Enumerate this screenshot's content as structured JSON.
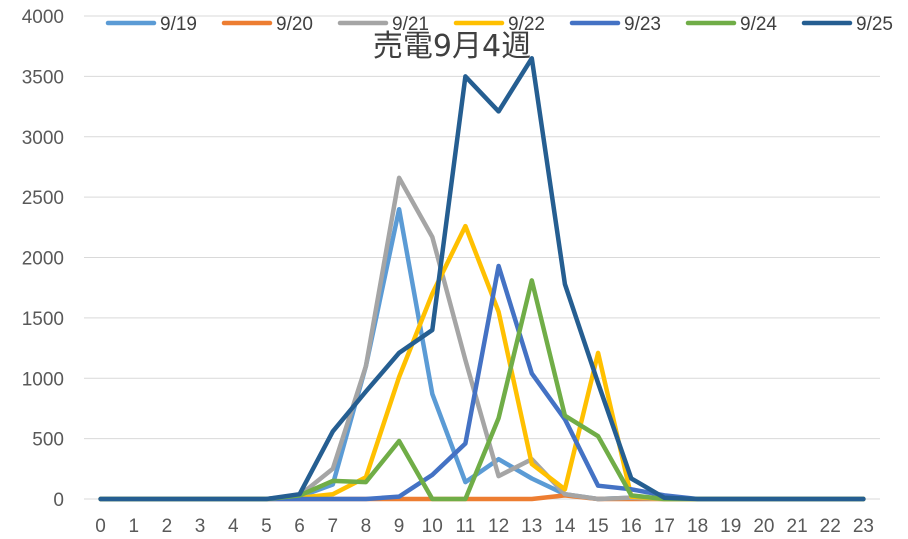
{
  "chart_data": {
    "type": "line",
    "title": "売電9月4週",
    "xlabel": "",
    "ylabel": "",
    "ylim": [
      0,
      4000
    ],
    "yticks": [
      0,
      500,
      1000,
      1500,
      2000,
      2500,
      3000,
      3500,
      4000
    ],
    "grid": true,
    "legend_position": "top",
    "x": [
      "0",
      "1",
      "2",
      "3",
      "4",
      "5",
      "6",
      "7",
      "8",
      "9",
      "10",
      "11",
      "12",
      "13",
      "14",
      "15",
      "16",
      "17",
      "18",
      "19",
      "20",
      "21",
      "22",
      "23"
    ],
    "series": [
      {
        "name": "9/19",
        "color": "#5b9bd5",
        "values": [
          0,
          0,
          0,
          0,
          0,
          0,
          20,
          120,
          1100,
          2400,
          870,
          140,
          330,
          170,
          40,
          0,
          10,
          0,
          0,
          0,
          0,
          0,
          0,
          0
        ]
      },
      {
        "name": "9/20",
        "color": "#ed7d31",
        "values": [
          0,
          0,
          0,
          0,
          0,
          0,
          0,
          0,
          0,
          0,
          0,
          0,
          0,
          0,
          30,
          0,
          0,
          0,
          0,
          0,
          0,
          0,
          0,
          0
        ]
      },
      {
        "name": "9/21",
        "color": "#a5a5a5",
        "values": [
          0,
          0,
          0,
          0,
          0,
          0,
          30,
          250,
          1100,
          2660,
          2170,
          1150,
          190,
          330,
          40,
          0,
          10,
          0,
          0,
          0,
          0,
          0,
          0,
          0
        ]
      },
      {
        "name": "9/22",
        "color": "#ffc000",
        "values": [
          0,
          0,
          0,
          0,
          0,
          0,
          10,
          40,
          180,
          1010,
          1700,
          2260,
          1550,
          290,
          80,
          1210,
          20,
          0,
          0,
          0,
          0,
          0,
          0,
          0
        ]
      },
      {
        "name": "9/23",
        "color": "#4472c4",
        "values": [
          0,
          0,
          0,
          0,
          0,
          0,
          0,
          0,
          0,
          20,
          200,
          460,
          1930,
          1040,
          660,
          110,
          80,
          30,
          0,
          0,
          0,
          0,
          0,
          0
        ]
      },
      {
        "name": "9/24",
        "color": "#70ad47",
        "values": [
          0,
          0,
          0,
          0,
          0,
          0,
          30,
          150,
          140,
          480,
          0,
          0,
          670,
          1810,
          690,
          520,
          30,
          0,
          0,
          0,
          0,
          0,
          0,
          0
        ]
      },
      {
        "name": "9/25",
        "color": "#255e91",
        "values": [
          0,
          0,
          0,
          0,
          0,
          0,
          40,
          560,
          890,
          1210,
          1400,
          3500,
          3210,
          3650,
          1780,
          960,
          170,
          10,
          0,
          0,
          0,
          0,
          0,
          0
        ]
      }
    ]
  }
}
